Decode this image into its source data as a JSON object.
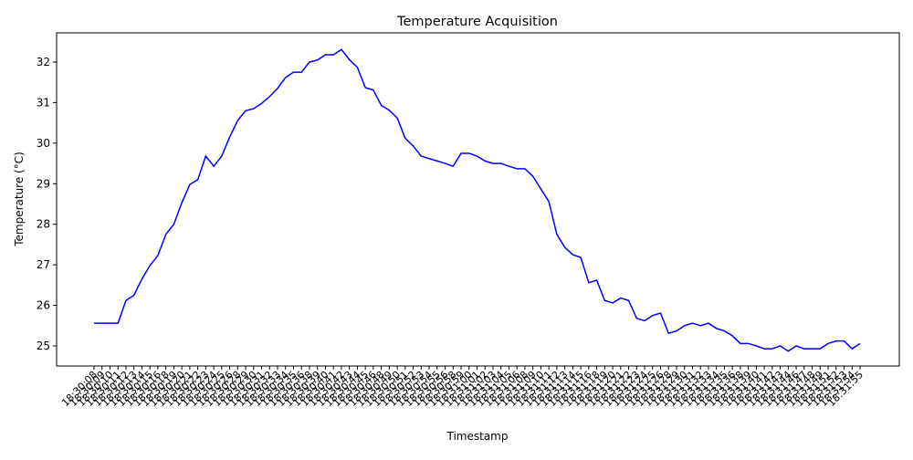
{
  "chart_data": {
    "type": "line",
    "title": "Temperature Acquisition",
    "x_label": "Timestamp",
    "y_label": "Temperature (°C)",
    "categories": [
      "18:30:08",
      "18:30:09",
      "18:30:10",
      "18:30:11",
      "18:30:12",
      "18:30:13",
      "18:30:14",
      "18:30:15",
      "18:30:16",
      "18:30:18",
      "18:30:19",
      "18:30:20",
      "18:30:21",
      "18:30:22",
      "18:30:23",
      "18:30:24",
      "18:30:25",
      "18:30:26",
      "18:30:28",
      "18:30:29",
      "18:30:30",
      "18:30:31",
      "18:30:32",
      "18:30:33",
      "18:30:34",
      "18:30:35",
      "18:30:36",
      "18:30:38",
      "18:30:39",
      "18:30:40",
      "18:30:41",
      "18:30:42",
      "18:30:43",
      "18:30:44",
      "18:30:45",
      "18:30:46",
      "18:30:48",
      "18:30:49",
      "18:30:50",
      "18:30:51",
      "18:30:52",
      "18:30:53",
      "18:30:54",
      "18:30:55",
      "18:30:56",
      "18:30:58",
      "18:30:59",
      "18:31:00",
      "18:31:01",
      "18:31:02",
      "18:31:03",
      "18:31:04",
      "18:31:05",
      "18:31:06",
      "18:31:08",
      "18:31:09",
      "18:31:10",
      "18:31:11",
      "18:31:12",
      "18:31:13",
      "18:31:14",
      "18:31:15",
      "18:31:16",
      "18:31:18",
      "18:31:19",
      "18:31:20",
      "18:31:21",
      "18:31:22",
      "18:31:23",
      "18:31:24",
      "18:31:25",
      "18:31:26",
      "18:31:28",
      "18:31:29",
      "18:31:30",
      "18:31:31",
      "18:31:32",
      "18:31:33",
      "18:31:34",
      "18:31:35",
      "18:31:36",
      "18:31:38",
      "18:31:39",
      "18:31:40",
      "18:31:41",
      "18:31:42",
      "18:31:43",
      "18:31:44",
      "18:31:46",
      "18:31:47",
      "18:31:48",
      "18:31:49",
      "18:31:51",
      "18:31:52",
      "18:31:53",
      "18:31:54",
      "18:31:55"
    ],
    "series": [
      {
        "name": "Temperature",
        "color": "#0000ff",
        "values": [
          25.56,
          25.56,
          25.56,
          25.56,
          26.12,
          26.25,
          26.65,
          26.98,
          27.23,
          27.75,
          28.0,
          28.53,
          28.98,
          29.1,
          29.68,
          29.43,
          29.68,
          30.15,
          30.56,
          30.8,
          30.85,
          30.98,
          31.15,
          31.35,
          31.62,
          31.75,
          31.75,
          32.0,
          32.05,
          32.18,
          32.18,
          32.31,
          32.06,
          31.87,
          31.37,
          31.31,
          30.93,
          30.81,
          30.62,
          30.12,
          29.93,
          29.68,
          29.62,
          29.56,
          29.5,
          29.43,
          29.75,
          29.75,
          29.68,
          29.56,
          29.5,
          29.5,
          29.43,
          29.37,
          29.37,
          29.18,
          28.87,
          28.56,
          27.75,
          27.43,
          27.25,
          27.18,
          26.56,
          26.62,
          26.12,
          26.06,
          26.18,
          26.12,
          25.68,
          25.62,
          25.75,
          25.81,
          25.31,
          25.37,
          25.5,
          25.56,
          25.5,
          25.56,
          25.43,
          25.37,
          25.25,
          25.06,
          25.06,
          25.0,
          24.93,
          24.93,
          25.0,
          24.87,
          25.0,
          24.93,
          24.93,
          24.93,
          25.06,
          25.12,
          25.12,
          24.93,
          25.06
        ]
      }
    ],
    "ylim": [
      24.505,
      32.72
    ],
    "yticks": [
      25,
      26,
      27,
      28,
      29,
      30,
      31,
      32
    ]
  }
}
